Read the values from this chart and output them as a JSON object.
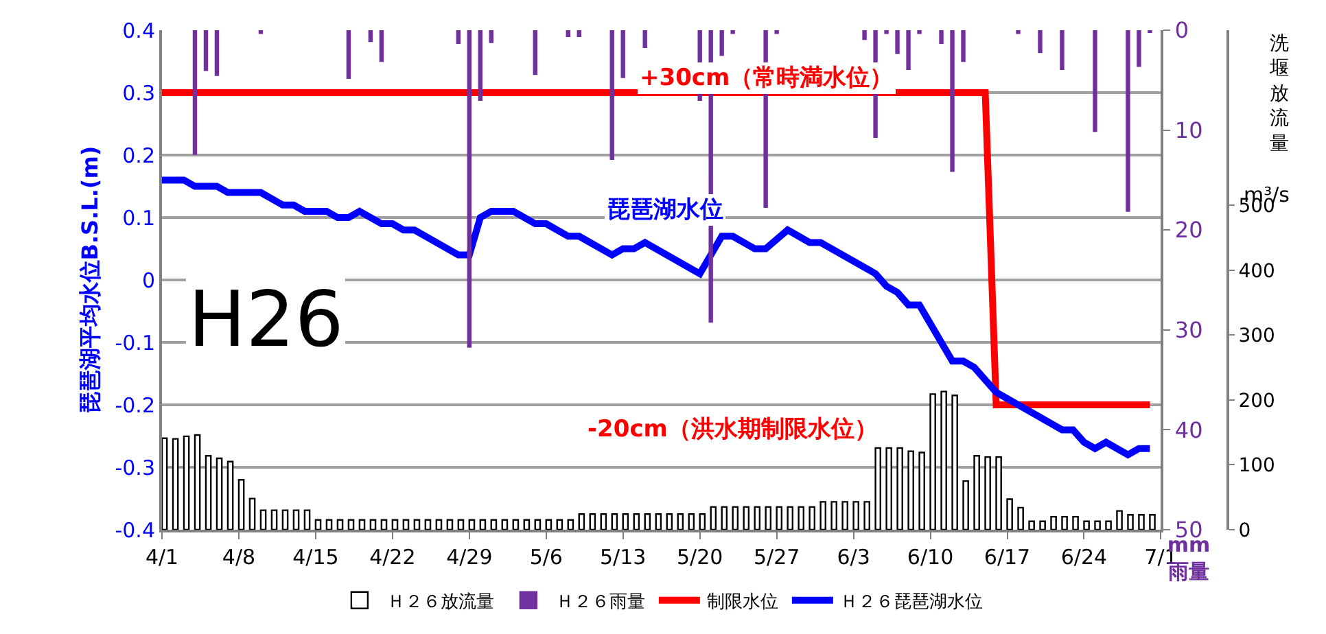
{
  "chart_data": {
    "type": "bar",
    "ylabel": "琵琶湖平均水位B.S.L.(m)",
    "y2label": "mm\n雨量",
    "y3label": "洗堰放流量\nm³/s",
    "annotations": [
      "+30cm（常時満水位）",
      "-20cm（洪水期制限水位）",
      "琵琶湖水位",
      "H26"
    ],
    "x": [
      "--04-01",
      "--04-02",
      "--04-03",
      "--04-04",
      "--04-05",
      "--04-06",
      "--04-07",
      "--04-08",
      "--04-09",
      "--04-10",
      "--04-11",
      "--04-12",
      "--04-13",
      "--04-14",
      "--04-15",
      "--04-16",
      "--04-17",
      "--04-18",
      "--04-19",
      "--04-20",
      "--04-21",
      "--04-22",
      "--04-23",
      "--04-24",
      "--04-25",
      "--04-26",
      "--04-27",
      "--04-28",
      "--04-29",
      "--04-30",
      "--05-01",
      "--05-02",
      "--05-03",
      "--05-04",
      "--05-05",
      "--05-06",
      "--05-07",
      "--05-08",
      "--05-09",
      "--05-10",
      "--05-11",
      "--05-12",
      "--05-13",
      "--05-14",
      "--05-15",
      "--05-16",
      "--05-17",
      "--05-18",
      "--05-19",
      "--05-20",
      "--05-21",
      "--05-22",
      "--05-23",
      "--05-24",
      "--05-25",
      "--05-26",
      "--05-27",
      "--05-28",
      "--05-29",
      "--05-30",
      "--05-31",
      "--06-01",
      "--06-02",
      "--06-03",
      "--06-04",
      "--06-05",
      "--06-06",
      "--06-07",
      "--06-08",
      "--06-09",
      "--06-10",
      "--06-11",
      "--06-12",
      "--06-13",
      "--06-14",
      "--06-15",
      "--06-16",
      "--06-17",
      "--06-18",
      "--06-19",
      "--06-20",
      "--06-21",
      "--06-22",
      "--06-23",
      "--06-24",
      "--06-25",
      "--06-26",
      "--06-27",
      "--06-28",
      "--06-29",
      "--06-30"
    ],
    "series": [
      {
        "name": "Ｈ２６放流量",
        "axis": "y3",
        "color": "#ffffff",
        "values": [
          141,
          140,
          144,
          146,
          114,
          110,
          105,
          77,
          48,
          30,
          30,
          30,
          30,
          30,
          15,
          15,
          15,
          15,
          15,
          15,
          15,
          15,
          15,
          15,
          15,
          15,
          15,
          15,
          15,
          15,
          15,
          15,
          15,
          15,
          15,
          15,
          15,
          15,
          24,
          24,
          24,
          24,
          24,
          24,
          24,
          24,
          24,
          24,
          24,
          24,
          35,
          35,
          35,
          35,
          35,
          35,
          35,
          35,
          35,
          35,
          43,
          43,
          43,
          43,
          43,
          126,
          126,
          126,
          121,
          119,
          209,
          213,
          207,
          75,
          114,
          112,
          112,
          47,
          34,
          13,
          13,
          20,
          20,
          20,
          13,
          13,
          13,
          29,
          23,
          23,
          23
        ]
      },
      {
        "name": "Ｈ２６雨量",
        "axis": "y2",
        "color": "#7030a0",
        "x": [
          "--04-04",
          "--04-05",
          "--04-06",
          "--04-10",
          "--04-18",
          "--04-20",
          "--04-21",
          "--04-28",
          "--04-29",
          "--04-30",
          "--05-01",
          "--05-05",
          "--05-08",
          "--05-09",
          "--05-12",
          "--05-13",
          "--05-15",
          "--05-20",
          "--05-21",
          "--05-22",
          "--05-23",
          "--05-26",
          "--05-27",
          "--06-04",
          "--06-05",
          "--06-06",
          "--06-07",
          "--06-08",
          "--06-09",
          "--06-11",
          "--06-12",
          "--06-13",
          "--06-18",
          "--06-20",
          "--06-22",
          "--06-25",
          "--06-28",
          "--06-29",
          "--06-30"
        ],
        "values": [
          12.4,
          4.0,
          4.5,
          0.3,
          4.8,
          1.1,
          3.1,
          1.3,
          31.7,
          7.0,
          1.2,
          4.4,
          0.6,
          0.6,
          12.9,
          4.7,
          1.7,
          7.0,
          29.2,
          2.5,
          0.3,
          17.7,
          0.3,
          0.9,
          10.7,
          0.3,
          2.3,
          3.9,
          0.3,
          1.3,
          14.1,
          3.1,
          0.3,
          2.2,
          3.9,
          10.1,
          18.1,
          3.6,
          0.2
        ]
      },
      {
        "name": "制限水位",
        "type": "line",
        "color": "#ff0000",
        "x": [
          "--04-01",
          "--06-15",
          "--06-16",
          "--06-30"
        ],
        "values": [
          0.3,
          0.3,
          -0.2,
          -0.2
        ]
      },
      {
        "name": "Ｈ２６琵琶湖水位",
        "type": "line",
        "color": "#0000ff",
        "x": [
          "--04-01",
          "--04-03",
          "--04-04",
          "--04-06",
          "--04-07",
          "--04-10",
          "--04-12",
          "--04-13",
          "--04-14",
          "--04-16",
          "--04-17",
          "--04-18",
          "--04-19",
          "--04-21",
          "--04-22",
          "--04-23",
          "--04-24",
          "--04-28",
          "--04-29",
          "--04-30",
          "--05-01",
          "--05-03",
          "--05-05",
          "--05-06",
          "--05-08",
          "--05-09",
          "--05-12",
          "--05-13",
          "--05-14",
          "--05-15",
          "--05-20",
          "--05-22",
          "--05-23",
          "--05-25",
          "--05-26",
          "--05-28",
          "--05-30",
          "--05-31",
          "--06-05",
          "--06-06",
          "--06-07",
          "--06-08",
          "--06-09",
          "--06-11",
          "--06-12",
          "--06-13",
          "--06-14",
          "--06-16",
          "--06-17",
          "--06-18",
          "--06-20",
          "--06-22",
          "--06-23",
          "--06-24",
          "--06-25",
          "--06-26",
          "--06-28",
          "--06-29",
          "--06-30"
        ],
        "values": [
          0.16,
          0.16,
          0.15,
          0.15,
          0.14,
          0.14,
          0.12,
          0.12,
          0.11,
          0.11,
          0.1,
          0.1,
          0.11,
          0.09,
          0.09,
          0.08,
          0.08,
          0.04,
          0.04,
          0.1,
          0.11,
          0.11,
          0.09,
          0.09,
          0.07,
          0.07,
          0.04,
          0.05,
          0.05,
          0.06,
          0.01,
          0.07,
          0.07,
          0.05,
          0.05,
          0.08,
          0.06,
          0.06,
          0.01,
          -0.01,
          -0.02,
          -0.04,
          -0.04,
          -0.1,
          -0.13,
          -0.13,
          -0.14,
          -0.18,
          -0.19,
          -0.2,
          -0.22,
          -0.24,
          -0.24,
          -0.26,
          -0.27,
          -0.26,
          -0.28,
          -0.27,
          -0.27
        ]
      }
    ],
    "xlim": [
      "--04-01",
      "--07-01"
    ],
    "xticks": [
      {
        "value": "--04-01",
        "label": "4/1"
      },
      {
        "value": "--04-08",
        "label": "4/8"
      },
      {
        "value": "--04-15",
        "label": "4/15"
      },
      {
        "value": "--04-22",
        "label": "4/22"
      },
      {
        "value": "--04-29",
        "label": "4/29"
      },
      {
        "value": "--05-06",
        "label": "5/6"
      },
      {
        "value": "--05-13",
        "label": "5/13"
      },
      {
        "value": "--05-20",
        "label": "5/20"
      },
      {
        "value": "--05-27",
        "label": "5/27"
      },
      {
        "value": "--06-03",
        "label": "6/3"
      },
      {
        "value": "--06-10",
        "label": "6/10"
      },
      {
        "value": "--06-17",
        "label": "6/17"
      },
      {
        "value": "--06-24",
        "label": "6/24"
      },
      {
        "value": "--07-01",
        "label": "7/1"
      }
    ],
    "ylim": [
      -0.4,
      0.4
    ],
    "yticks": [
      -0.4,
      -0.3,
      -0.2,
      -0.1,
      0,
      0.1,
      0.2,
      0.3,
      0.4
    ],
    "y2lim": [
      50,
      0
    ],
    "y2ticks": [
      0,
      10,
      20,
      30,
      40,
      50
    ],
    "y3lim": [
      0,
      770
    ],
    "y3ticks": [
      0,
      100,
      200,
      300,
      400,
      500
    ],
    "grid": "y",
    "legend": "bottom"
  }
}
